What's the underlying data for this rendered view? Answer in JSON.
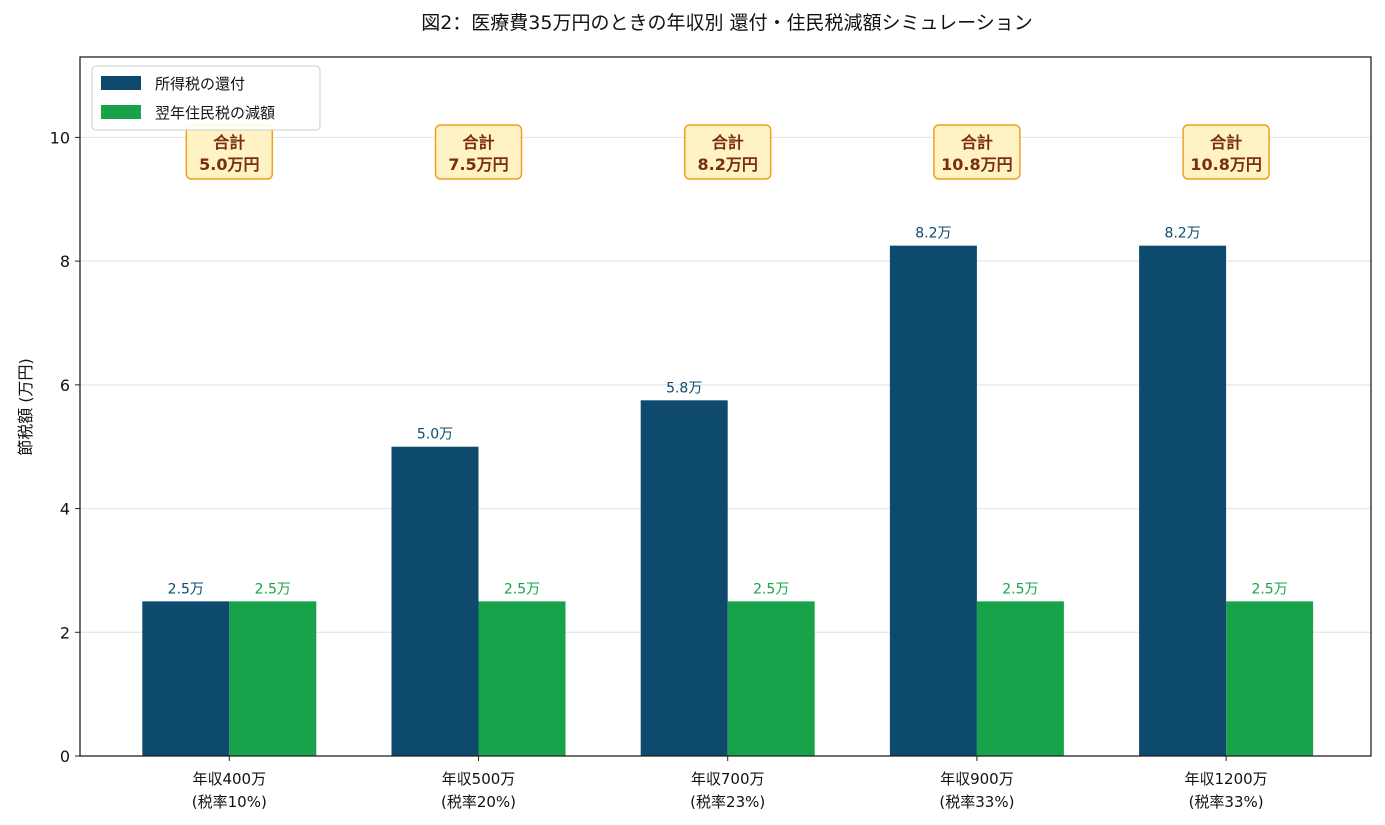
{
  "chart_data": {
    "type": "bar",
    "title": "図2：医療費35万円のときの年収別 還付・住民税減額シミュレーション",
    "ylabel": "節税額 (万円)",
    "xlabel": "",
    "ylim": [
      0,
      11.3
    ],
    "yticks": [
      0,
      2,
      4,
      6,
      8,
      10
    ],
    "grid": true,
    "legend_position": "top-left",
    "categories": [
      [
        "年収400万",
        "(税率10%)"
      ],
      [
        "年収500万",
        "(税率20%)"
      ],
      [
        "年収700万",
        "(税率23%)"
      ],
      [
        "年収900万",
        "(税率33%)"
      ],
      [
        "年収1200万",
        "(税率33%)"
      ]
    ],
    "series": [
      {
        "name": "所得税の還付",
        "color": "#0e4a6e",
        "values": [
          2.5,
          5.0,
          5.75,
          8.25,
          8.25
        ],
        "labels": [
          "2.5万",
          "5.0万",
          "5.8万",
          "8.2万",
          "8.2万"
        ]
      },
      {
        "name": "翌年住民税の減額",
        "color": "#18a34a",
        "values": [
          2.5,
          2.5,
          2.5,
          2.5,
          2.5
        ],
        "labels": [
          "2.5万",
          "2.5万",
          "2.5万",
          "2.5万",
          "2.5万"
        ]
      }
    ],
    "annotations": [
      [
        "合計",
        "5.0万円"
      ],
      [
        "合計",
        "7.5万円"
      ],
      [
        "合計",
        "8.2万円"
      ],
      [
        "合計",
        "10.8万円"
      ],
      [
        "合計",
        "10.8万円"
      ]
    ],
    "annotation_style": {
      "fill": "#fff2c4",
      "stroke": "#f0a020",
      "text": "#7a2e0b"
    }
  }
}
